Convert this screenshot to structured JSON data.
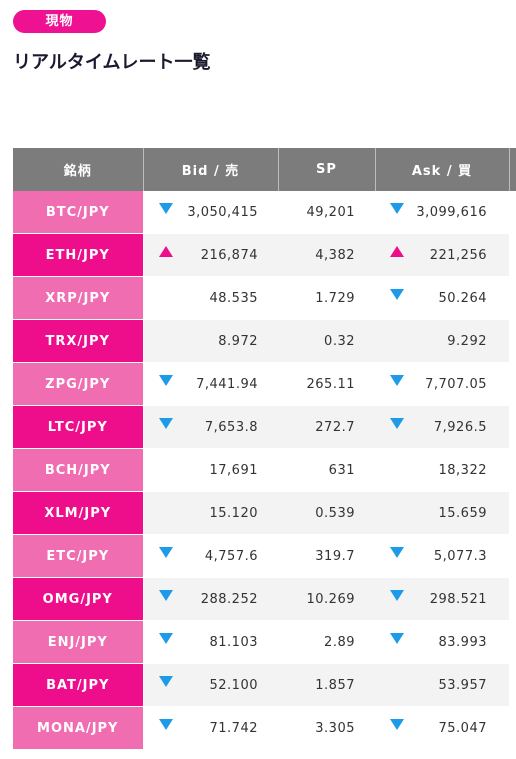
{
  "badge": {
    "label": "現物"
  },
  "title": "リアルタイムレート一覧",
  "colors": {
    "accent": "#ee0e8c",
    "pair_light": "#f06db1",
    "header_bg": "#7c7c7c",
    "down_arrow": "#1e9be8",
    "up_arrow": "#ee0e8c"
  },
  "table": {
    "headers": {
      "pair": "銘柄",
      "bid": "Bid / 売",
      "sp": "SP",
      "ask": "Ask / 買"
    },
    "rows": [
      {
        "pair": "BTC/JPY",
        "bid": "3,050,415",
        "bid_dir": "down",
        "sp": "49,201",
        "ask": "3,099,616",
        "ask_dir": "down"
      },
      {
        "pair": "ETH/JPY",
        "bid": "216,874",
        "bid_dir": "up",
        "sp": "4,382",
        "ask": "221,256",
        "ask_dir": "up"
      },
      {
        "pair": "XRP/JPY",
        "bid": "48.535",
        "bid_dir": "none",
        "sp": "1.729",
        "ask": "50.264",
        "ask_dir": "down"
      },
      {
        "pair": "TRX/JPY",
        "bid": "8.972",
        "bid_dir": "none",
        "sp": "0.32",
        "ask": "9.292",
        "ask_dir": "none"
      },
      {
        "pair": "ZPG/JPY",
        "bid": "7,441.94",
        "bid_dir": "down",
        "sp": "265.11",
        "ask": "7,707.05",
        "ask_dir": "down"
      },
      {
        "pair": "LTC/JPY",
        "bid": "7,653.8",
        "bid_dir": "down",
        "sp": "272.7",
        "ask": "7,926.5",
        "ask_dir": "down"
      },
      {
        "pair": "BCH/JPY",
        "bid": "17,691",
        "bid_dir": "none",
        "sp": "631",
        "ask": "18,322",
        "ask_dir": "none"
      },
      {
        "pair": "XLM/JPY",
        "bid": "15.120",
        "bid_dir": "none",
        "sp": "0.539",
        "ask": "15.659",
        "ask_dir": "none"
      },
      {
        "pair": "ETC/JPY",
        "bid": "4,757.6",
        "bid_dir": "down",
        "sp": "319.7",
        "ask": "5,077.3",
        "ask_dir": "down"
      },
      {
        "pair": "OMG/JPY",
        "bid": "288.252",
        "bid_dir": "down",
        "sp": "10.269",
        "ask": "298.521",
        "ask_dir": "down"
      },
      {
        "pair": "ENJ/JPY",
        "bid": "81.103",
        "bid_dir": "down",
        "sp": "2.89",
        "ask": "83.993",
        "ask_dir": "down"
      },
      {
        "pair": "BAT/JPY",
        "bid": "52.100",
        "bid_dir": "down",
        "sp": "1.857",
        "ask": "53.957",
        "ask_dir": "none"
      },
      {
        "pair": "MONA/JPY",
        "bid": "71.742",
        "bid_dir": "down",
        "sp": "3.305",
        "ask": "75.047",
        "ask_dir": "down"
      }
    ]
  }
}
